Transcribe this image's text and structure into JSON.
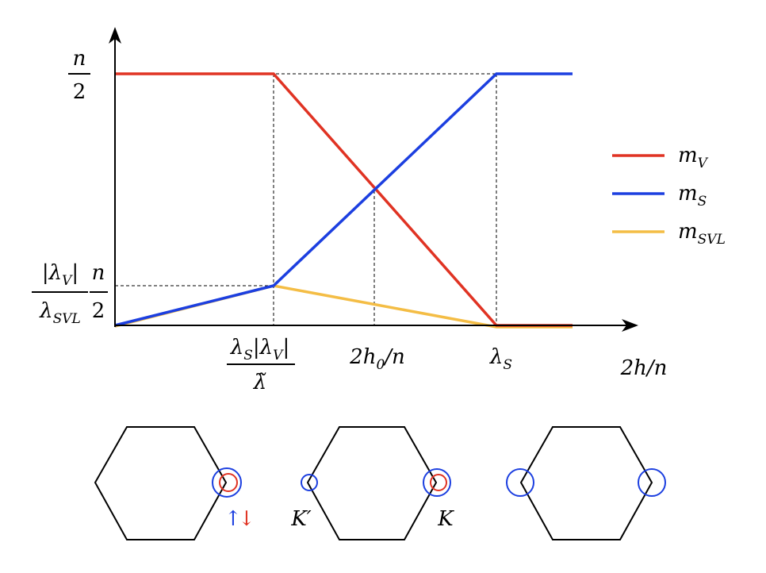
{
  "y_axis_labels": {
    "top": {
      "numerator": "n",
      "denominator": "2"
    },
    "middle": {
      "left_numerator": {
        "pre": "|λ",
        "sub": "V",
        "post": "|"
      },
      "left_denominator": {
        "base": "λ",
        "sub": "SVL"
      },
      "right_numerator": "n",
      "right_denominator": "2"
    }
  },
  "x_axis_labels": {
    "first": {
      "numerator": {
        "a": "λ",
        "a_sub": "S",
        "b": "|λ",
        "b_sub": "V",
        "c": "|"
      },
      "denominator": "λ̃"
    },
    "second": {
      "a": "2h",
      "a_sub": "0",
      "b": "/n"
    },
    "third": {
      "a": "λ",
      "a_sub": "S"
    },
    "title": "2h/n"
  },
  "legend": [
    {
      "base": "m",
      "sub": "V",
      "color": "#e03323"
    },
    {
      "base": "m",
      "sub": "S",
      "color": "#1c3fe0"
    },
    {
      "base": "m",
      "sub": "SVL",
      "color": "#f4bd45"
    }
  ],
  "hexagon_labels": {
    "up": "↑",
    "down": "↓",
    "k_prime": "K′",
    "k": "K"
  }
}
